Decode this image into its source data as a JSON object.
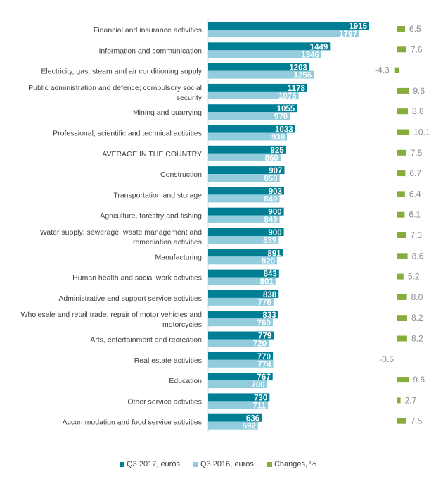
{
  "chart_data": {
    "type": "bar",
    "orientation": "horizontal",
    "title": "",
    "xlabel": "",
    "ylabel": "",
    "categories": [
      "Financial and insurance activities",
      "Information and communication",
      "Electricity, gas, steam and air conditioning supply",
      "Public administration and defence; compulsory social security",
      "Mining and quarrying",
      "Professional, scientific and technical activities",
      "AVERAGE IN THE COUNTRY",
      "Construction",
      "Transportation and storage",
      "Agriculture, forestry and fishing",
      "Water supply; sewerage, waste management and remediation activities",
      "Manufacturing",
      "Human health and social work activities",
      "Administrative and support service activities",
      "Wholesale and retail trade; repair of motor vehicles and motorcycles",
      "Arts, entertainment and recreation",
      "Real estate activities",
      "Education",
      "Other service activities",
      "Accommodation and food service activities"
    ],
    "category_lines": [
      [
        "Financial and insurance activities"
      ],
      [
        "Information and communication"
      ],
      [
        "Electricity, gas, steam and air conditioning supply"
      ],
      [
        "Public administration and defence; compulsory social",
        "security"
      ],
      [
        "Mining and quarrying"
      ],
      [
        "Professional, scientific and technical activities"
      ],
      [
        "AVERAGE IN THE COUNTRY"
      ],
      [
        "Construction"
      ],
      [
        "Transportation and storage"
      ],
      [
        "Agriculture, forestry and fishing"
      ],
      [
        "Water supply; sewerage, waste management and",
        "remediation activities"
      ],
      [
        "Manufacturing"
      ],
      [
        "Human health and social work activities"
      ],
      [
        "Administrative and support service activities"
      ],
      [
        "Wholesale and retail trade; repair of motor vehicles and",
        "motorcycles"
      ],
      [
        "Arts, entertainment and recreation"
      ],
      [
        "Real estate activities"
      ],
      [
        "Education"
      ],
      [
        "Other service activities"
      ],
      [
        "Accommodation and food service activities"
      ]
    ],
    "series": [
      {
        "name": "Q3 2017, euros",
        "color": "#007e94",
        "values": [
          1915,
          1449,
          1203,
          1178,
          1055,
          1033,
          925,
          907,
          903,
          900,
          900,
          891,
          843,
          838,
          833,
          779,
          770,
          767,
          730,
          636
        ]
      },
      {
        "name": "Q3 2016, euros",
        "color": "#93cddd",
        "values": [
          1797,
          1346,
          1256,
          1075,
          970,
          938,
          860,
          850,
          849,
          849,
          839,
          820,
          801,
          776,
          769,
          720,
          774,
          700,
          711,
          592
        ]
      },
      {
        "name": "Changes, %",
        "color": "#84ad3c",
        "values": [
          6.5,
          7.6,
          -4.3,
          9.6,
          8.8,
          10.1,
          7.5,
          6.7,
          6.4,
          6.1,
          7.3,
          8.6,
          5.2,
          8.0,
          8.2,
          8.2,
          -0.5,
          9.6,
          2.7,
          7.5
        ]
      }
    ],
    "legend": {
      "position": "bottom",
      "entries": [
        "Q3 2017, euros",
        "Q3 2016, euros",
        "Changes, %"
      ]
    },
    "grid": false
  }
}
